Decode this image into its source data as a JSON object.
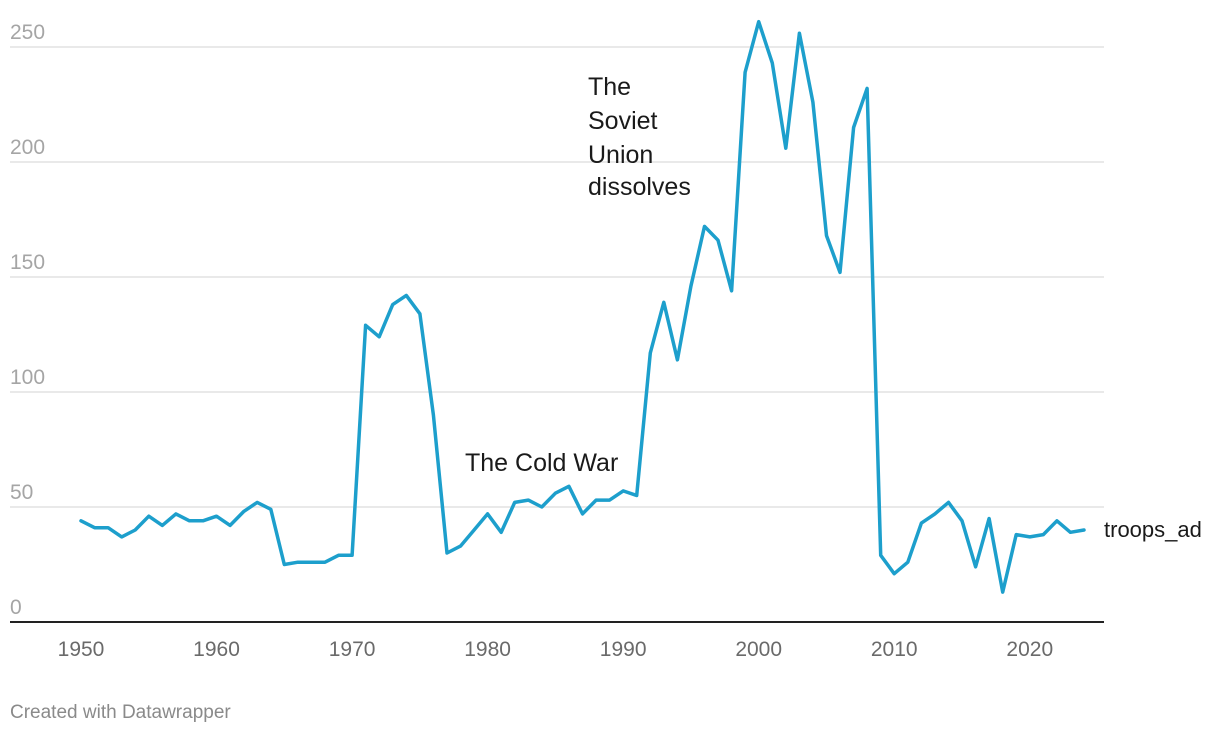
{
  "chart_data": {
    "type": "line",
    "title": "",
    "xlabel": "",
    "ylabel": "",
    "xlim": [
      1949.8,
      2025.6
    ],
    "ylim": [
      0,
      250
    ],
    "grid": true,
    "yticks": [
      0,
      50,
      100,
      150,
      200,
      250
    ],
    "xticks": [
      1950,
      1960,
      1970,
      1980,
      1990,
      2000,
      2010,
      2020
    ],
    "series": [
      {
        "name": "troops_ad",
        "color": "#1d9fcc",
        "x": [
          1950,
          1951,
          1952,
          1953,
          1954,
          1955,
          1956,
          1957,
          1958,
          1959,
          1960,
          1961,
          1962,
          1963,
          1964,
          1965,
          1966,
          1967,
          1968,
          1969,
          1970,
          1971,
          1972,
          1973,
          1974,
          1975,
          1976,
          1977,
          1978,
          1979,
          1980,
          1981,
          1982,
          1983,
          1984,
          1985,
          1986,
          1987,
          1988,
          1989,
          1990,
          1991,
          1992,
          1993,
          1994,
          1995,
          1996,
          1997,
          1998,
          1999,
          2000,
          2001,
          2002,
          2003,
          2004,
          2005,
          2006,
          2007,
          2008,
          2009,
          2010,
          2011,
          2012,
          2013,
          2014,
          2015,
          2016,
          2017,
          2018,
          2019,
          2020,
          2021,
          2022,
          2023,
          2024
        ],
        "y": [
          44,
          41,
          41,
          37,
          40,
          46,
          42,
          47,
          44,
          44,
          46,
          42,
          48,
          52,
          49,
          25,
          26,
          26,
          26,
          29,
          29,
          129,
          124,
          138,
          142,
          134,
          90,
          30,
          33,
          40,
          47,
          39,
          52,
          53,
          50,
          56,
          59,
          47,
          53,
          53,
          57,
          55,
          117,
          139,
          114,
          146,
          172,
          166,
          144,
          239,
          261,
          243,
          206,
          256,
          226,
          168,
          152,
          215,
          232,
          29,
          21,
          26,
          43,
          47,
          52,
          44,
          24,
          45,
          13,
          38,
          37,
          38,
          44,
          39,
          40
        ]
      }
    ],
    "annotations": [
      {
        "lines": [
          "The Cold War"
        ]
      },
      {
        "lines": [
          "The",
          "Soviet",
          "Union",
          "dissolves"
        ]
      }
    ],
    "credit": "Created with Datawrapper"
  }
}
